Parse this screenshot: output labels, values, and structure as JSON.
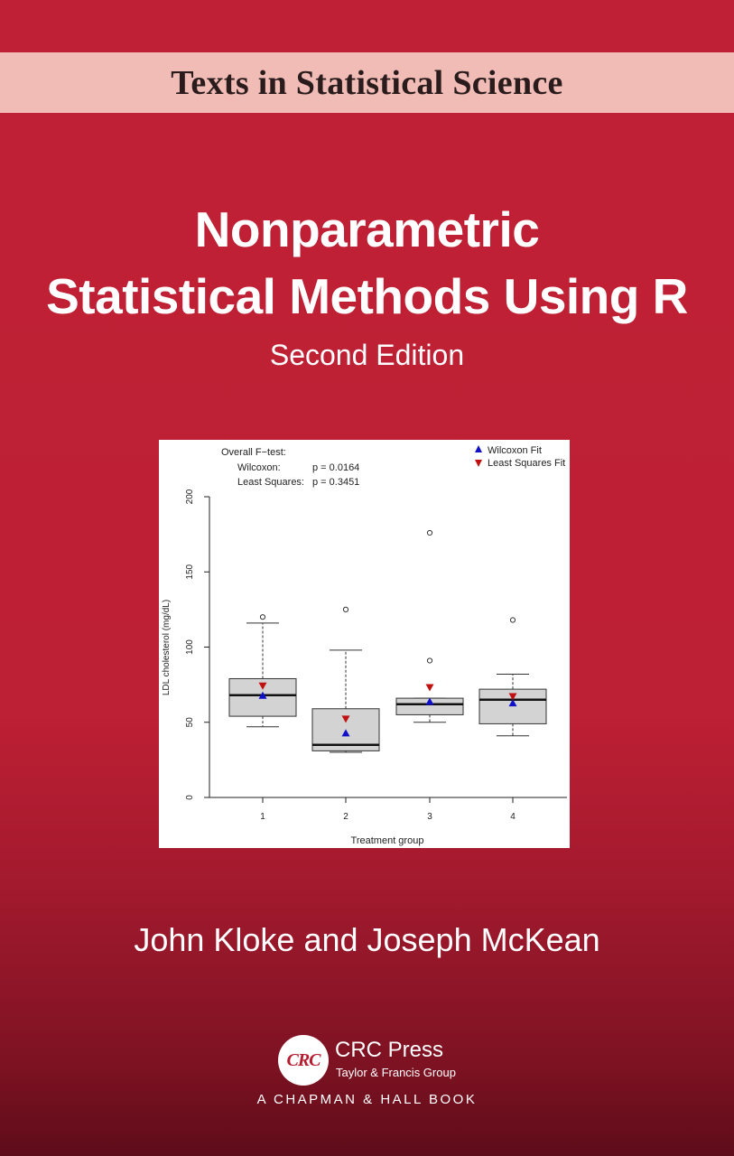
{
  "series": "Texts in Statistical Science",
  "title_line1": "Nonparametric",
  "title_line2": "Statistical Methods Using R",
  "edition": "Second Edition",
  "authors": "John Kloke and Joseph McKean",
  "publisher": {
    "logo_text": "CRC",
    "name": "CRC Press",
    "group": "Taylor & Francis Group",
    "imprint": "A CHAPMAN & HALL BOOK"
  },
  "colors": {
    "cover_red": "#c02035",
    "band_pink": "#f1bcb6",
    "wilcoxon_blue": "#1010c8",
    "ls_red": "#c01010"
  },
  "chart_data": {
    "type": "box",
    "categories": [
      "1",
      "2",
      "3",
      "4"
    ],
    "xlabel": "Treatment group",
    "ylabel": "LDL cholesterol (mg/dL)",
    "ylim": [
      0,
      200
    ],
    "yticks": [
      0,
      50,
      100,
      150,
      200
    ],
    "grid": false,
    "legend_position": "top-right",
    "annotation": {
      "heading": "Overall F−test:",
      "rows": [
        {
          "label": "Wilcoxon:",
          "value": "p = 0.0164"
        },
        {
          "label": "Least Squares:",
          "value": "p = 0.3451"
        }
      ]
    },
    "legend": [
      {
        "label": "Wilcoxon Fit",
        "marker": "triangle-up",
        "color": "#1010c8"
      },
      {
        "label": "Least Squares Fit",
        "marker": "triangle-down",
        "color": "#c01010"
      }
    ],
    "boxes": [
      {
        "category": "1",
        "whisker_low": 47,
        "q1": 54,
        "median": 68,
        "q3": 79,
        "whisker_high": 116,
        "outliers": [
          120
        ],
        "wilcoxon_fit": 68,
        "ls_fit": 74
      },
      {
        "category": "2",
        "whisker_low": 30,
        "q1": 31,
        "median": 35,
        "q3": 59,
        "whisker_high": 98,
        "outliers": [
          125
        ],
        "wilcoxon_fit": 43,
        "ls_fit": 52
      },
      {
        "category": "3",
        "whisker_low": 50,
        "q1": 55,
        "median": 62,
        "q3": 66,
        "whisker_high": 66,
        "outliers": [
          91,
          176
        ],
        "wilcoxon_fit": 64,
        "ls_fit": 73
      },
      {
        "category": "4",
        "whisker_low": 41,
        "q1": 49,
        "median": 65,
        "q3": 72,
        "whisker_high": 82,
        "outliers": [
          118
        ],
        "wilcoxon_fit": 63,
        "ls_fit": 67
      }
    ]
  }
}
